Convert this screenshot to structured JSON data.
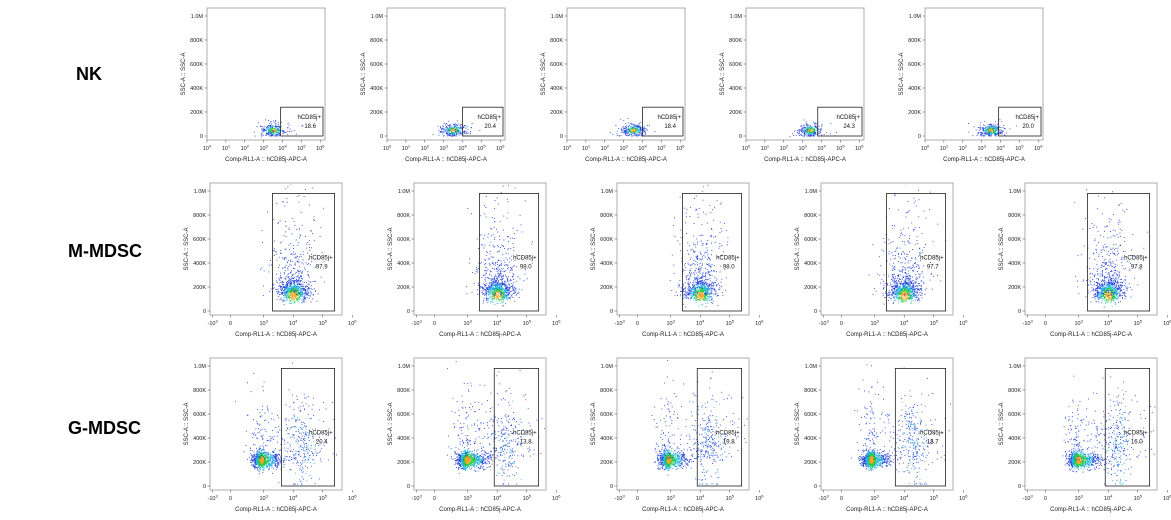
{
  "rows": [
    {
      "label": "NK"
    },
    {
      "label": "M-MDSC"
    },
    {
      "label": "G-MDSC"
    }
  ],
  "chart_data": [
    {
      "type": "scatter",
      "row": "NK",
      "panel": 1,
      "xlabel": "Comp-RL1-A :: hCD85j-APC-A",
      "ylabel": "SSC-A :: SSC-A",
      "x_scale": "log",
      "x_ticks": [
        "10^0",
        "10^1",
        "10^2",
        "10^3",
        "10^4",
        "10^5",
        "10^6"
      ],
      "y_ticks": [
        "0",
        "200K",
        "400K",
        "600K",
        "800K",
        "1.0M"
      ],
      "ylim": [
        0,
        1000000
      ],
      "gate": {
        "name": "hCD85j+",
        "percent": "18.6",
        "x_range_log10": [
          3.9,
          6.2
        ],
        "y_range": [
          0,
          240000
        ]
      },
      "cluster": {
        "center_log10x": 3.5,
        "center_y": 50000
      }
    },
    {
      "type": "scatter",
      "row": "NK",
      "panel": 2,
      "xlabel": "Comp-RL1-A :: hCD85j-APC-A",
      "ylabel": "SSC-A :: SSC-A",
      "x_scale": "log",
      "x_ticks": [
        "10^0",
        "10^1",
        "10^2",
        "10^3",
        "10^4",
        "10^5",
        "10^6"
      ],
      "y_ticks": [
        "0",
        "200K",
        "400K",
        "600K",
        "800K",
        "1.0M"
      ],
      "ylim": [
        0,
        1000000
      ],
      "gate": {
        "name": "hCD85j+",
        "percent": "20.4",
        "x_range_log10": [
          4.0,
          6.2
        ],
        "y_range": [
          0,
          240000
        ]
      },
      "cluster": {
        "center_log10x": 3.5,
        "center_y": 50000
      }
    },
    {
      "type": "scatter",
      "row": "NK",
      "panel": 3,
      "xlabel": "Comp-RL1-A :: hCD85j-APC-A",
      "ylabel": "SSC-A :: SSC-A",
      "x_scale": "log",
      "x_ticks": [
        "10^0",
        "10^1",
        "10^2",
        "10^3",
        "10^4",
        "10^5",
        "10^6"
      ],
      "y_ticks": [
        "0",
        "200K",
        "400K",
        "600K",
        "800K",
        "1.0M"
      ],
      "ylim": [
        0,
        1000000
      ],
      "gate": {
        "name": "hCD85j+",
        "percent": "18.4",
        "x_range_log10": [
          4.0,
          6.2
        ],
        "y_range": [
          0,
          240000
        ]
      },
      "cluster": {
        "center_log10x": 3.5,
        "center_y": 50000
      }
    },
    {
      "type": "scatter",
      "row": "NK",
      "panel": 4,
      "xlabel": "Comp-RL1-A :: hCD85j-APC-A",
      "ylabel": "SSC-A :: SSC-A",
      "x_scale": "log",
      "x_ticks": [
        "10^0",
        "10^1",
        "10^2",
        "10^3",
        "10^4",
        "10^5",
        "10^6"
      ],
      "y_ticks": [
        "0",
        "200K",
        "400K",
        "600K",
        "800K",
        "1.0M"
      ],
      "ylim": [
        0,
        1000000
      ],
      "gate": {
        "name": "hCD85j+",
        "percent": "24.3",
        "x_range_log10": [
          3.8,
          6.2
        ],
        "y_range": [
          0,
          240000
        ]
      },
      "cluster": {
        "center_log10x": 3.4,
        "center_y": 50000
      }
    },
    {
      "type": "scatter",
      "row": "NK",
      "panel": 5,
      "xlabel": "Comp-RL1-A :: hCD85j-APC-A",
      "ylabel": "SSC-A :: SSC-A",
      "x_scale": "log",
      "x_ticks": [
        "10^0",
        "10^1",
        "10^2",
        "10^3",
        "10^4",
        "10^5",
        "10^6"
      ],
      "y_ticks": [
        "0",
        "200K",
        "400K",
        "600K",
        "800K",
        "1.0M"
      ],
      "ylim": [
        0,
        1000000
      ],
      "gate": {
        "name": "hCD85j+",
        "percent": "20.0",
        "x_range_log10": [
          3.9,
          6.2
        ],
        "y_range": [
          0,
          240000
        ]
      },
      "cluster": {
        "center_log10x": 3.5,
        "center_y": 50000
      }
    },
    {
      "type": "scatter",
      "row": "M-MDSC",
      "panel": 1,
      "xlabel": "Comp-RL1-A :: hCD85j-APC-A",
      "ylabel": "SSC-A :: SSC-A",
      "x_scale": "biexponential",
      "x_ticks": [
        "-10^3",
        "0",
        "10^3",
        "10^4",
        "10^5",
        "10^6"
      ],
      "y_ticks": [
        "0",
        "200K",
        "400K",
        "600K",
        "800K",
        "1.0M"
      ],
      "ylim": [
        0,
        1000000
      ],
      "gate": {
        "name": "hCD85j+",
        "percent": "97.9",
        "x_range": [
          3.3,
          5.4
        ],
        "y_range": [
          0,
          980000
        ]
      },
      "cluster": {
        "center_x": 4.0,
        "center_y": 130000
      }
    },
    {
      "type": "scatter",
      "row": "M-MDSC",
      "panel": 2,
      "xlabel": "Comp-RL1-A :: hCD85j-APC-A",
      "ylabel": "SSC-A :: SSC-A",
      "x_scale": "biexponential",
      "x_ticks": [
        "-10^3",
        "0",
        "10^3",
        "10^4",
        "10^5",
        "10^6"
      ],
      "y_ticks": [
        "0",
        "200K",
        "400K",
        "600K",
        "800K",
        "1.0M"
      ],
      "ylim": [
        0,
        1000000
      ],
      "gate": {
        "name": "hCD85j+",
        "percent": "98.0",
        "x_range": [
          3.4,
          5.4
        ],
        "y_range": [
          0,
          980000
        ]
      },
      "cluster": {
        "center_x": 4.0,
        "center_y": 130000
      }
    },
    {
      "type": "scatter",
      "row": "M-MDSC",
      "panel": 3,
      "xlabel": "Comp-RL1-A :: hCD85j-APC-A",
      "ylabel": "SSC-A :: SSC-A",
      "x_scale": "biexponential",
      "x_ticks": [
        "-10^3",
        "0",
        "10^3",
        "10^4",
        "10^5",
        "10^6"
      ],
      "y_ticks": [
        "0",
        "200K",
        "400K",
        "600K",
        "800K",
        "1.0M"
      ],
      "ylim": [
        0,
        1000000
      ],
      "gate": {
        "name": "hCD85j+",
        "percent": "98.0",
        "x_range": [
          3.4,
          5.4
        ],
        "y_range": [
          0,
          980000
        ]
      },
      "cluster": {
        "center_x": 4.0,
        "center_y": 130000
      }
    },
    {
      "type": "scatter",
      "row": "M-MDSC",
      "panel": 4,
      "xlabel": "Comp-RL1-A :: hCD85j-APC-A",
      "ylabel": "SSC-A :: SSC-A",
      "x_scale": "biexponential",
      "x_ticks": [
        "-10^3",
        "0",
        "10^3",
        "10^4",
        "10^5",
        "10^6"
      ],
      "y_ticks": [
        "0",
        "200K",
        "400K",
        "600K",
        "800K",
        "1.0M"
      ],
      "ylim": [
        0,
        1000000
      ],
      "gate": {
        "name": "hCD85j+",
        "percent": "97.7",
        "x_range": [
          3.4,
          5.4
        ],
        "y_range": [
          0,
          980000
        ]
      },
      "cluster": {
        "center_x": 4.0,
        "center_y": 130000
      }
    },
    {
      "type": "scatter",
      "row": "M-MDSC",
      "panel": 5,
      "xlabel": "Comp-RL1-A :: hCD85j-APC-A",
      "ylabel": "SSC-A :: SSC-A",
      "x_scale": "biexponential",
      "x_ticks": [
        "-10^3",
        "0",
        "10^3",
        "10^4",
        "10^5",
        "10^6"
      ],
      "y_ticks": [
        "0",
        "200K",
        "400K",
        "600K",
        "800K",
        "1.0M"
      ],
      "ylim": [
        0,
        1000000
      ],
      "gate": {
        "name": "hCD85j+",
        "percent": "97.8",
        "x_range": [
          3.3,
          5.4
        ],
        "y_range": [
          0,
          980000
        ]
      },
      "cluster": {
        "center_x": 4.0,
        "center_y": 130000
      }
    },
    {
      "type": "scatter",
      "row": "G-MDSC",
      "panel": 1,
      "xlabel": "Comp-RL1-A :: hCD85j-APC-A",
      "ylabel": "SSC-A :: SSC-A",
      "x_scale": "biexponential",
      "x_ticks": [
        "-10^3",
        "0",
        "10^3",
        "10^4",
        "10^5",
        "10^6"
      ],
      "y_ticks": [
        "0",
        "200K",
        "400K",
        "600K",
        "800K",
        "1.0M"
      ],
      "ylim": [
        0,
        1000000
      ],
      "gate": {
        "name": "hCD85j+",
        "percent": "20.4",
        "x_range": [
          3.6,
          5.4
        ],
        "y_range": [
          0,
          980000
        ]
      },
      "cluster": {
        "center_x": 2.8,
        "center_y": 220000
      }
    },
    {
      "type": "scatter",
      "row": "G-MDSC",
      "panel": 2,
      "xlabel": "Comp-RL1-A :: hCD85j-APC-A",
      "ylabel": "SSC-A :: SSC-A",
      "x_scale": "biexponential",
      "x_ticks": [
        "-10^3",
        "0",
        "10^3",
        "10^4",
        "10^5",
        "10^6"
      ],
      "y_ticks": [
        "0",
        "200K",
        "400K",
        "600K",
        "800K",
        "1.0M"
      ],
      "ylim": [
        0,
        1000000
      ],
      "gate": {
        "name": "hCD85j+",
        "percent": "13.8",
        "x_range": [
          3.9,
          5.4
        ],
        "y_range": [
          0,
          980000
        ]
      },
      "cluster": {
        "center_x": 2.9,
        "center_y": 220000
      }
    },
    {
      "type": "scatter",
      "row": "G-MDSC",
      "panel": 3,
      "xlabel": "Comp-RL1-A :: hCD85j-APC-A",
      "ylabel": "SSC-A :: SSC-A",
      "x_scale": "biexponential",
      "x_ticks": [
        "-10^3",
        "0",
        "10^3",
        "10^4",
        "10^5",
        "10^6"
      ],
      "y_ticks": [
        "0",
        "200K",
        "400K",
        "600K",
        "800K",
        "1.0M"
      ],
      "ylim": [
        0,
        1000000
      ],
      "gate": {
        "name": "hCD85j+",
        "percent": "19.8",
        "x_range": [
          3.9,
          5.4
        ],
        "y_range": [
          0,
          980000
        ]
      },
      "cluster": {
        "center_x": 2.8,
        "center_y": 220000
      }
    },
    {
      "type": "scatter",
      "row": "G-MDSC",
      "panel": 4,
      "xlabel": "Comp-RL1-A :: hCD85j-APC-A",
      "ylabel": "SSC-A :: SSC-A",
      "x_scale": "biexponential",
      "x_ticks": [
        "-10^3",
        "0",
        "10^3",
        "10^4",
        "10^5",
        "10^6"
      ],
      "y_ticks": [
        "0",
        "200K",
        "400K",
        "600K",
        "800K",
        "1.0M"
      ],
      "ylim": [
        0,
        1000000
      ],
      "gate": {
        "name": "hCD85j+",
        "percent": "18.7",
        "x_range": [
          3.7,
          5.4
        ],
        "y_range": [
          0,
          980000
        ]
      },
      "cluster": {
        "center_x": 2.7,
        "center_y": 220000
      }
    },
    {
      "type": "scatter",
      "row": "G-MDSC",
      "panel": 5,
      "xlabel": "Comp-RL1-A :: hCD85j-APC-A",
      "ylabel": "SSC-A :: SSC-A",
      "x_scale": "biexponential",
      "x_ticks": [
        "-10^3",
        "0",
        "10^3",
        "10^4",
        "10^5",
        "10^6"
      ],
      "y_ticks": [
        "0",
        "200K",
        "400K",
        "600K",
        "800K",
        "1.0M"
      ],
      "ylim": [
        0,
        1000000
      ],
      "gate": {
        "name": "hCD85j+",
        "percent": "16.0",
        "x_range": [
          3.9,
          5.4
        ],
        "y_range": [
          0,
          980000
        ]
      },
      "cluster": {
        "center_x": 2.9,
        "center_y": 220000
      }
    }
  ]
}
